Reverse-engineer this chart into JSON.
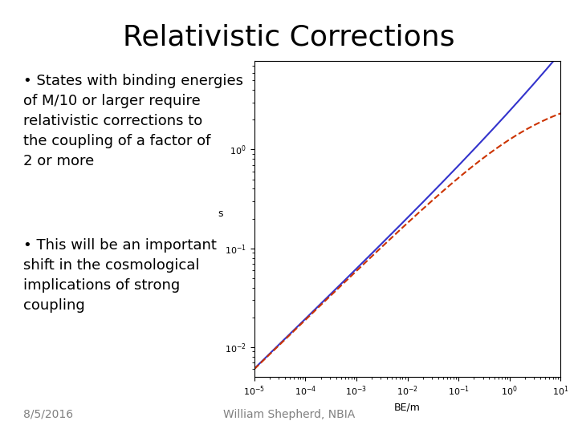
{
  "title": "Relativistic Corrections",
  "bullet1": "States with binding energies of M/10 or larger require relativistic corrections to the coupling of a factor of 2 or more",
  "bullet2": "This will be an important shift in the cosmological implications of strong coupling",
  "date": "8/5/2016",
  "author": "William Shepherd, NBIA",
  "xlabel": "BE/m",
  "ylabel": "s",
  "xlim_log": [
    -5,
    1
  ],
  "ylim_log": [
    -2.3,
    0.8
  ],
  "bg_color": "#ffffff",
  "line_color_blue": "#3333cc",
  "line_color_red": "#cc3300",
  "title_fontsize": 26,
  "bullet_fontsize": 13,
  "footer_fontsize": 10
}
